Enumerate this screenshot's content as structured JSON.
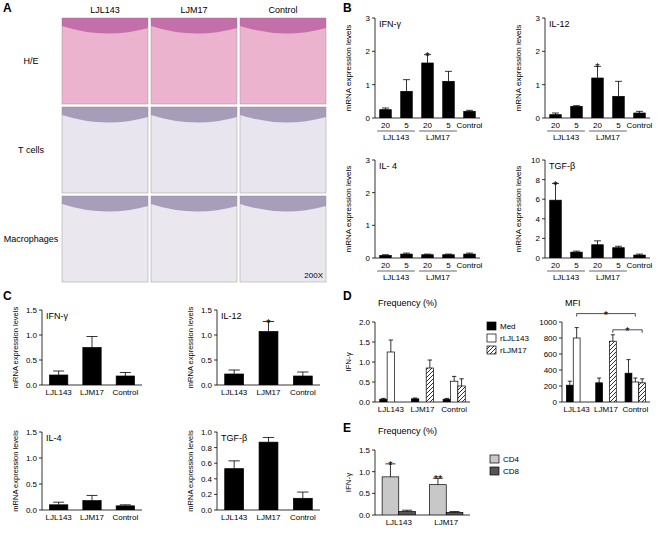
{
  "panel_a": {
    "panel": "A",
    "columns": [
      "LJL143",
      "LJM17",
      "Control"
    ],
    "rows": [
      "H/E",
      "T cells",
      "Macrophages"
    ],
    "magnification": "200X"
  },
  "chart_data": [
    {
      "type": "bar",
      "panel": "B",
      "title": "IFN-γ",
      "y_label": "mRNA expression levels",
      "categories": [
        "20",
        "5",
        "20",
        "5",
        "Control"
      ],
      "group_labels": [
        "LJL143",
        "LJM17"
      ],
      "values": [
        0.25,
        0.8,
        1.65,
        1.1,
        0.2
      ],
      "errors": [
        0.05,
        0.35,
        0.25,
        0.3,
        0.03
      ],
      "color": "#000000",
      "ylim": [
        0,
        3
      ],
      "yticks": [
        0,
        1,
        2,
        3
      ],
      "annotations": [
        {
          "index": 2,
          "text": "*"
        }
      ]
    },
    {
      "type": "bar",
      "title": "IL-12",
      "y_label": "mRNA expression levels",
      "categories": [
        "20",
        "5",
        "20",
        "5",
        "Control"
      ],
      "group_labels": [
        "LJL143",
        "LJM17"
      ],
      "values": [
        0.1,
        0.35,
        1.2,
        0.65,
        0.15
      ],
      "errors": [
        0.05,
        0.02,
        0.35,
        0.45,
        0.05
      ],
      "color": "#000000",
      "ylim": [
        0,
        3
      ],
      "yticks": [
        0,
        1,
        2,
        3
      ],
      "annotations": [
        {
          "index": 2,
          "text": "*"
        }
      ]
    },
    {
      "type": "bar",
      "title": "IL- 4",
      "y_label": "mRNA expression levels",
      "categories": [
        "20",
        "5",
        "20",
        "5",
        "Control"
      ],
      "group_labels": [
        "LJL143",
        "LJM17"
      ],
      "values": [
        0.08,
        0.12,
        0.1,
        0.1,
        0.12
      ],
      "errors": [
        0.02,
        0.03,
        0.02,
        0.02,
        0.03
      ],
      "color": "#000000",
      "ylim": [
        0,
        3
      ],
      "yticks": [
        0,
        1,
        2,
        3
      ]
    },
    {
      "type": "bar",
      "title": "TGF-β",
      "y_label": "mRNA expression levels",
      "categories": [
        "20",
        "5",
        "20",
        "5",
        "Control"
      ],
      "group_labels": [
        "LJL143",
        "LJM17"
      ],
      "values": [
        5.9,
        0.6,
        1.35,
        1.05,
        0.3
      ],
      "errors": [
        1.7,
        0.1,
        0.4,
        0.15,
        0.1
      ],
      "color": "#000000",
      "ylim": [
        0,
        10
      ],
      "yticks": [
        0,
        2,
        4,
        6,
        8,
        10
      ],
      "annotations": [
        {
          "index": 0,
          "text": "*"
        }
      ]
    },
    {
      "type": "bar",
      "panel": "C",
      "title": "IFN-γ",
      "y_label": "mRNA expression levels",
      "categories": [
        "LJL143",
        "LJM17",
        "Control"
      ],
      "values": [
        0.2,
        0.75,
        0.18
      ],
      "errors": [
        0.08,
        0.22,
        0.07
      ],
      "color": "#000000",
      "ylim": [
        0,
        1.5
      ],
      "yticks": [
        {
          "value": 0,
          "label": "0.0"
        },
        0.5,
        {
          "value": 1,
          "label": "1.0"
        },
        1.5
      ]
    },
    {
      "type": "bar",
      "title": "IL-12",
      "y_label": "mRNA expression levels",
      "categories": [
        "LJL143",
        "LJM17",
        "Control"
      ],
      "values": [
        0.22,
        1.07,
        0.18
      ],
      "errors": [
        0.08,
        0.2,
        0.08
      ],
      "color": "#000000",
      "ylim": [
        0,
        1.5
      ],
      "yticks": [
        {
          "value": 0,
          "label": "0.0"
        },
        0.5,
        {
          "value": 1,
          "label": "1.0"
        },
        1.5
      ],
      "annotations": [
        {
          "index": 1,
          "text": "*"
        }
      ]
    },
    {
      "type": "bar",
      "title": "IL-4",
      "y_label": "mRNA expression levels",
      "categories": [
        "LJL143",
        "LJM17",
        "Control"
      ],
      "values": [
        0.1,
        0.18,
        0.08
      ],
      "errors": [
        0.05,
        0.1,
        0.02
      ],
      "color": "#000000",
      "ylim": [
        0,
        1.5
      ],
      "yticks": [
        {
          "value": 0,
          "label": "0.0"
        },
        0.5,
        {
          "value": 1,
          "label": "1.0"
        },
        1.5
      ]
    },
    {
      "type": "bar",
      "title": "TGF-β",
      "y_label": "mRNA expression levels",
      "categories": [
        "LJL143",
        "LJM17",
        "Control"
      ],
      "values": [
        0.53,
        0.87,
        0.15
      ],
      "errors": [
        0.1,
        0.06,
        0.08
      ],
      "color": "#000000",
      "ylim": [
        0,
        1
      ],
      "yticks": [
        {
          "value": 0,
          "label": "0.0"
        },
        0.2,
        0.4,
        0.6,
        0.8,
        {
          "value": 1,
          "label": "1.0"
        }
      ]
    },
    {
      "type": "bar",
      "panel": "D",
      "title": "Frequency (%)",
      "y_label": "IFN-γ",
      "categories": [
        "LJL143",
        "LJM17",
        "Control"
      ],
      "legend": "right",
      "series": [
        {
          "name": "Med",
          "color": "#000000",
          "values": [
            0.07,
            0.08,
            0.07
          ],
          "errors": [
            0.02,
            0.02,
            0.02
          ]
        },
        {
          "name": "rLJL143",
          "color": "#ffffff",
          "values": [
            1.25,
            null,
            0.52
          ],
          "errors": [
            0.3,
            null,
            0.12
          ]
        },
        {
          "name": "rLJM17",
          "color": "#ffffff",
          "line_style": "hatch",
          "values": [
            null,
            0.85,
            0.4
          ],
          "errors": [
            null,
            0.2,
            0.18
          ]
        }
      ],
      "ylim": [
        0,
        2
      ],
      "yticks": [
        {
          "value": 0,
          "label": "0.0"
        },
        0.5,
        {
          "value": 1,
          "label": "1.0"
        },
        1.5,
        {
          "value": 2,
          "label": "2.0"
        }
      ]
    },
    {
      "type": "bar",
      "title": "MFI",
      "categories": [
        "LJL143",
        "LJM17",
        "Control"
      ],
      "series": [
        {
          "name": "Med",
          "color": "#000000",
          "values": [
            210,
            240,
            360
          ],
          "errors": [
            50,
            60,
            170
          ]
        },
        {
          "name": "rLJL143",
          "color": "#ffffff",
          "values": [
            800,
            null,
            250
          ],
          "errors": [
            130,
            null,
            50
          ]
        },
        {
          "name": "rLJM17",
          "color": "#ffffff",
          "line_style": "hatch",
          "values": [
            null,
            760,
            240
          ],
          "errors": [
            null,
            80,
            50
          ]
        }
      ],
      "ylim": [
        0,
        1000
      ],
      "yticks": [
        0,
        200,
        400,
        600,
        800,
        1000
      ],
      "annotations": [
        {
          "series": 1,
          "from": 0,
          "to": 2,
          "text": "*"
        },
        {
          "series": 2,
          "from": 1,
          "to": 2,
          "text": "*"
        }
      ]
    },
    {
      "type": "bar",
      "panel": "E",
      "title": "Frequency (%)",
      "y_label": "IFN-γ",
      "categories": [
        "LJL143",
        "LJM17"
      ],
      "legend": "right",
      "series": [
        {
          "name": "CD4",
          "color": "#c8c8c8",
          "values": [
            0.88,
            0.7
          ],
          "errors": [
            0.3,
            0.15
          ]
        },
        {
          "name": "CD8",
          "color": "#555555",
          "values": [
            0.08,
            0.06
          ],
          "errors": [
            0.03,
            0.02
          ]
        }
      ],
      "ylim": [
        0,
        1.5
      ],
      "yticks": [
        {
          "value": 0,
          "label": "0.0"
        },
        0.5,
        {
          "value": 1,
          "label": "1.0"
        },
        1.5
      ],
      "annotations": [
        {
          "series": 0,
          "index": 0,
          "text": "*"
        },
        {
          "series": 0,
          "index": 1,
          "text": "**"
        }
      ]
    }
  ]
}
